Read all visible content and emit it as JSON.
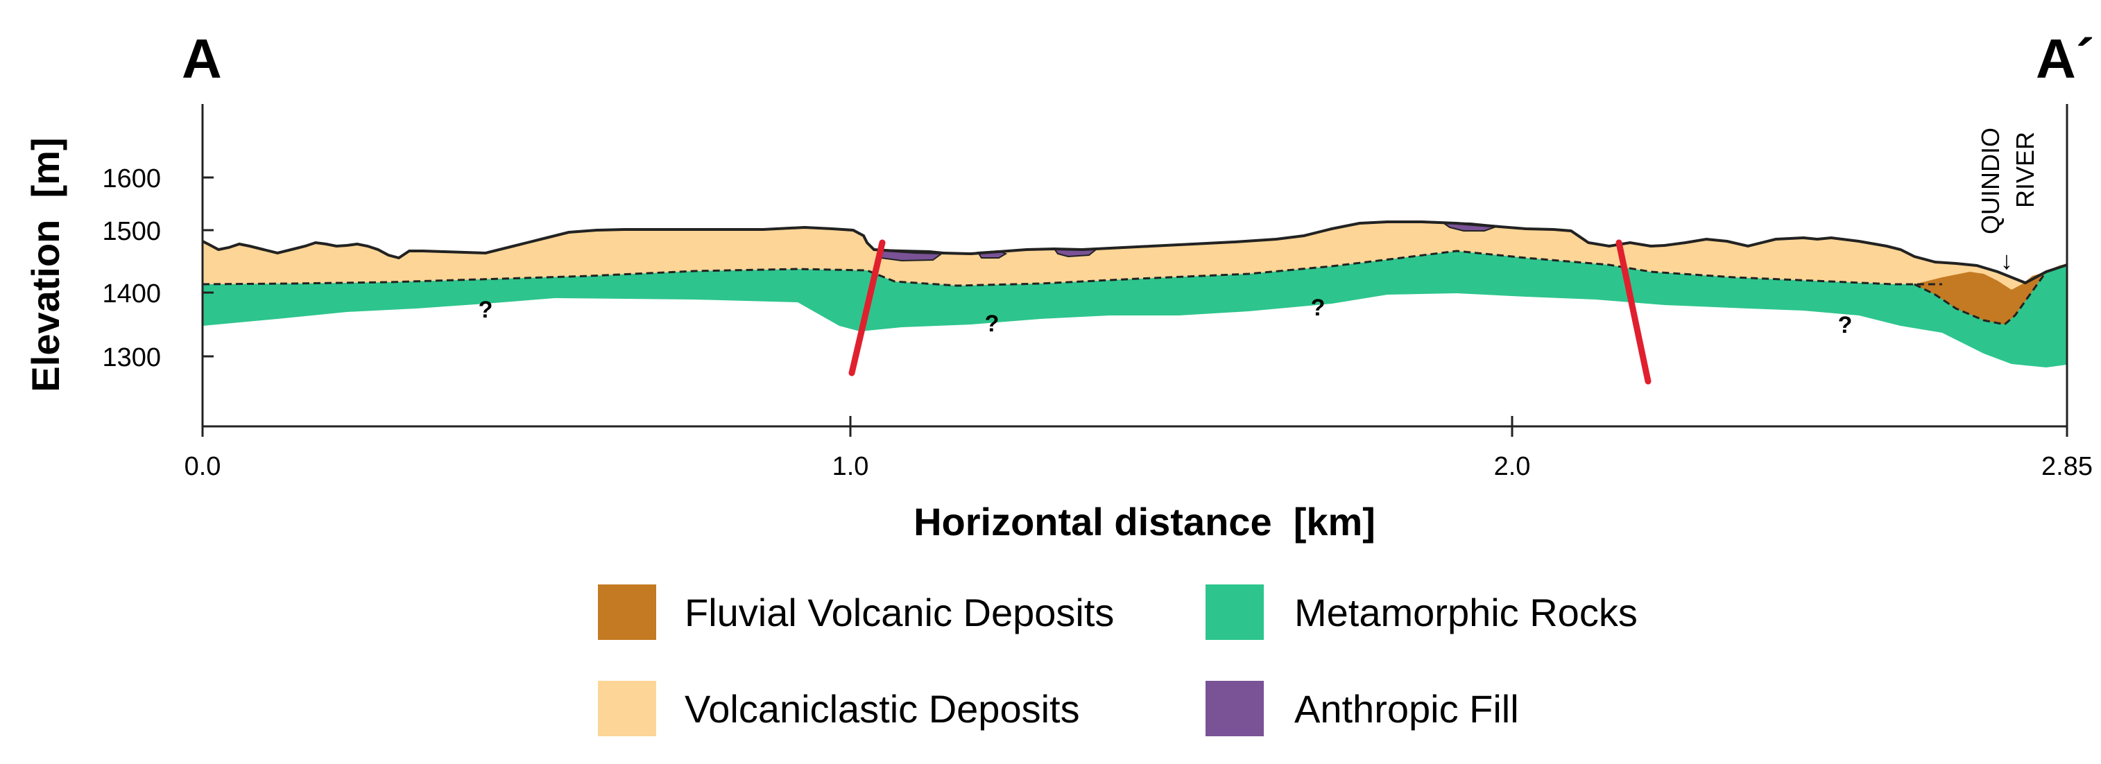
{
  "section": {
    "start_label": "A",
    "end_label": "A´",
    "river_label_line1": "QUINDIO",
    "river_label_line2": "RIVER",
    "question_mark": "?",
    "arrow": "↓"
  },
  "axes": {
    "y_title": "Elevation  [m]",
    "x_title": "Horizontal distance  [km]",
    "y_ticks": [
      "1600",
      "1500",
      "1400",
      "1300"
    ],
    "x_ticks": [
      "0.0",
      "1.0",
      "2.0",
      "2.85"
    ]
  },
  "legend": [
    {
      "label": "Fluvial Volcanic Deposits",
      "color": "#c47a22"
    },
    {
      "label": "Metamorphic Rocks",
      "color": "#2dc58d"
    },
    {
      "label": "Volcaniclastic Deposits",
      "color": "#fdd596"
    },
    {
      "label": "Anthropic Fill",
      "color": "#7a5296"
    }
  ],
  "colors": {
    "fault": "#e0202e",
    "outline": "#222222"
  }
}
